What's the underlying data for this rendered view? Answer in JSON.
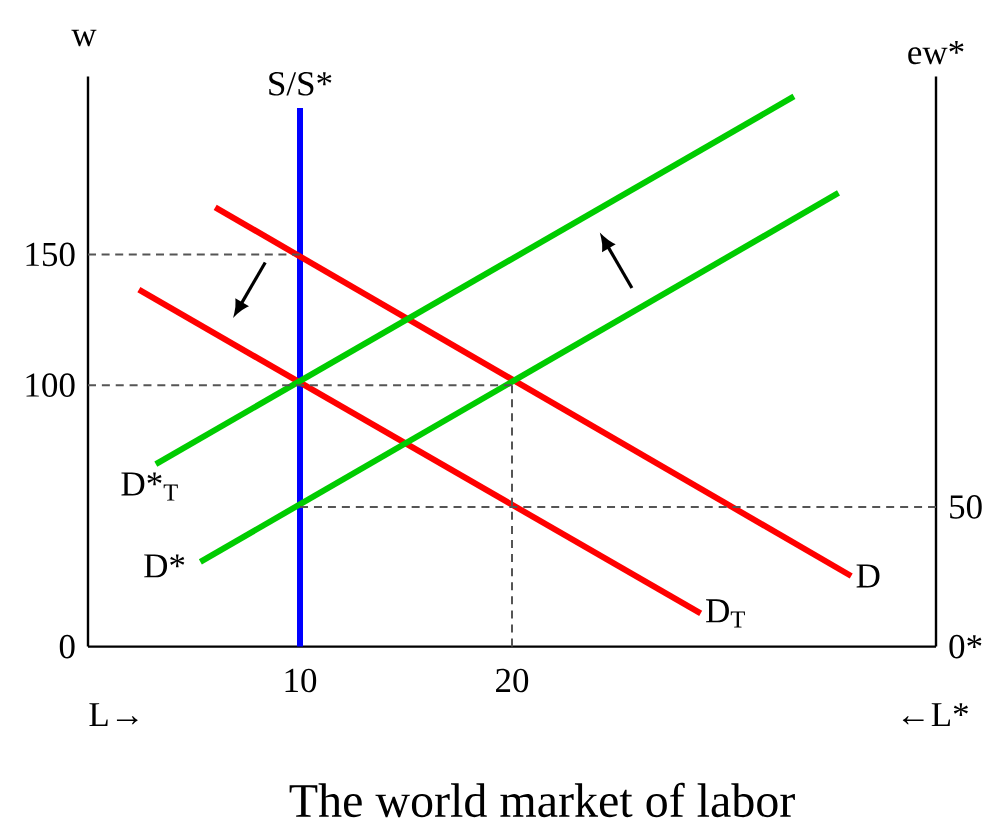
{
  "chart_data": {
    "type": "line",
    "title": "The world market of labor",
    "xlabel": "L→",
    "ylabel": "w",
    "y2label": "ew*",
    "annotations": [
      "←L*"
    ],
    "xlim": [
      0,
      40
    ],
    "ylim": [
      0,
      218
    ],
    "y2lim": [
      0,
      204
    ],
    "xticks": [
      10,
      20
    ],
    "yticks": [
      0,
      100,
      150
    ],
    "y2ticks": [
      {
        "value": 0,
        "label": "0*"
      },
      50
    ],
    "series": [
      {
        "color": "#555555",
        "line_style": "dashed",
        "x": [
          0,
          10
        ],
        "values": [
          150,
          150
        ]
      },
      {
        "color": "#555555",
        "line_style": "dashed",
        "x": [
          0,
          20
        ],
        "values": [
          100,
          100
        ]
      },
      {
        "color": "#555555",
        "line_style": "dashed",
        "x": [
          20,
          20
        ],
        "values": [
          100,
          0
        ]
      },
      {
        "color": "#555555",
        "line_style": "dashed",
        "axis": "y2",
        "x": [
          10,
          40
        ],
        "values": [
          50,
          50
        ]
      },
      {
        "name": "S/S*",
        "color": "#0000ff",
        "x": [
          10,
          10
        ],
        "values": [
          0,
          206
        ]
      },
      {
        "name": "D",
        "color": "#ff0000",
        "x": [
          6,
          36
        ],
        "values": [
          168,
          27
        ]
      },
      {
        "name": "D$_{T}$",
        "color": "#ff0000",
        "x": [
          2.4,
          28.9
        ],
        "values": [
          136.5,
          12.7
        ]
      },
      {
        "name": "D*",
        "color": "#00cc00",
        "x": [
          5.3,
          35.4
        ],
        "values": [
          32.4,
          173.5
        ]
      },
      {
        "name": "D*$_{T}$",
        "color": "#00cc00",
        "x": [
          3.2,
          33.3
        ],
        "values": [
          69.8,
          210.4
        ]
      }
    ]
  }
}
